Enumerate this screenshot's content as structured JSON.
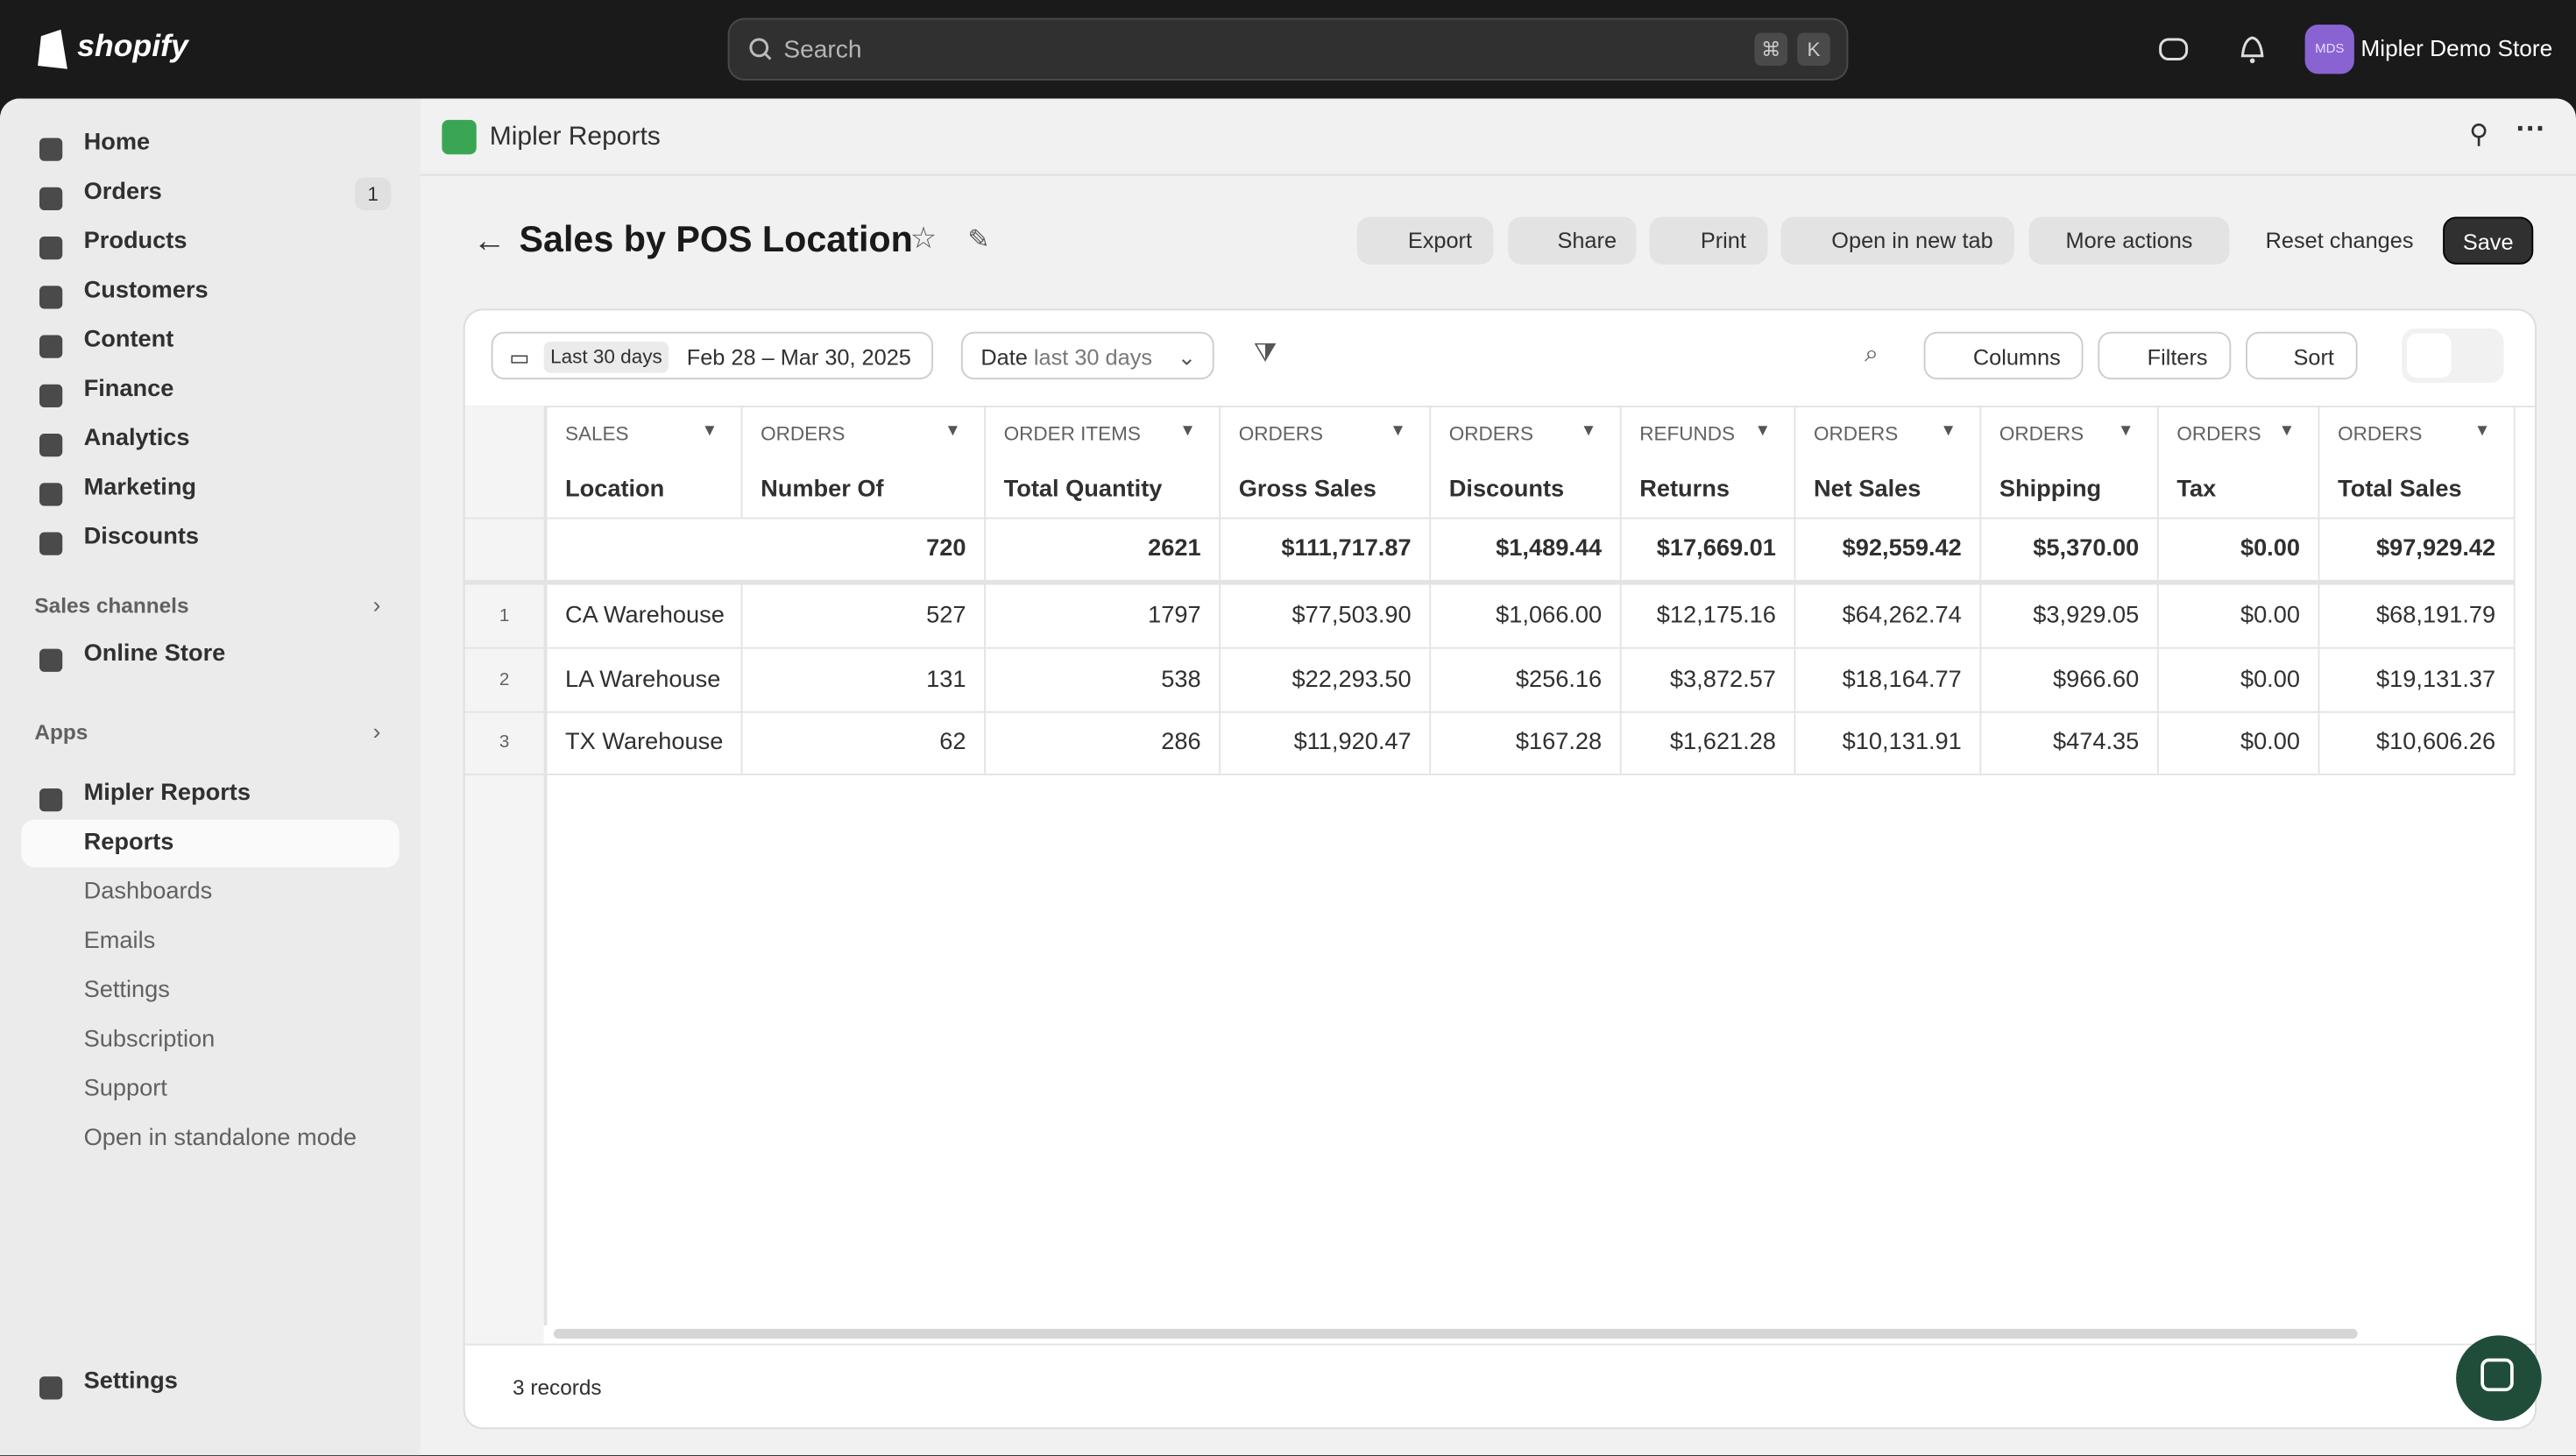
{
  "topbar": {
    "brand": "shopify",
    "search": "Search",
    "shortcut": [
      "⌘",
      "K"
    ],
    "store_initials": "MDS",
    "store": "Mipler Demo Store"
  },
  "sidebar": {
    "main": [
      {
        "label": "Home"
      },
      {
        "label": "Orders",
        "badge": "1"
      },
      {
        "label": "Products"
      },
      {
        "label": "Customers"
      },
      {
        "label": "Content"
      },
      {
        "label": "Finance"
      },
      {
        "label": "Analytics"
      },
      {
        "label": "Marketing"
      },
      {
        "label": "Discounts"
      }
    ],
    "sales_channels": {
      "title": "Sales channels",
      "items": [
        "Online Store"
      ]
    },
    "apps": {
      "title": "Apps",
      "app": "Mipler Reports",
      "sub": [
        "Reports",
        "Dashboards",
        "Emails",
        "Settings",
        "Subscription",
        "Support",
        "Open in standalone mode"
      ]
    },
    "settings": "Settings"
  },
  "app_header": "Mipler Reports",
  "page": {
    "title": "Sales by POS Location",
    "actions": [
      "Export",
      "Share",
      "Print",
      "Open in new tab",
      "More actions"
    ],
    "reset": "Reset changes",
    "save": "Save"
  },
  "toolbar": {
    "range_chip": "Last 30 days",
    "range": "Feb 28 – Mar 30, 2025",
    "date_filter_label": "Date",
    "date_filter_value": "last 30 days",
    "columns": "Columns",
    "filters": "Filters",
    "sort": "Sort"
  },
  "table": {
    "columns": [
      {
        "group": "SALES",
        "name": "Location"
      },
      {
        "group": "ORDERS",
        "name": "Number Of"
      },
      {
        "group": "ORDER ITEMS",
        "name": "Total Quantity"
      },
      {
        "group": "ORDERS",
        "name": "Gross Sales"
      },
      {
        "group": "ORDERS",
        "name": "Discounts"
      },
      {
        "group": "REFUNDS",
        "name": "Returns"
      },
      {
        "group": "ORDERS",
        "name": "Net Sales"
      },
      {
        "group": "ORDERS",
        "name": "Shipping"
      },
      {
        "group": "ORDERS",
        "name": "Tax"
      },
      {
        "group": "ORDERS",
        "name": "Total Sales"
      }
    ],
    "totals": [
      "720",
      "2621",
      "$111,717.87",
      "$1,489.44",
      "$17,669.01",
      "$92,559.42",
      "$5,370.00",
      "$0.00",
      "$97,929.42"
    ],
    "rows": [
      {
        "index": 1,
        "cells": [
          "CA Warehouse",
          "527",
          "1797",
          "$77,503.90",
          "$1,066.00",
          "$12,175.16",
          "$64,262.74",
          "$3,929.05",
          "$0.00",
          "$68,191.79"
        ]
      },
      {
        "index": 2,
        "cells": [
          "LA Warehouse",
          "131",
          "538",
          "$22,293.50",
          "$256.16",
          "$3,872.57",
          "$18,164.77",
          "$966.60",
          "$0.00",
          "$19,131.37"
        ]
      },
      {
        "index": 3,
        "cells": [
          "TX Warehouse",
          "62",
          "286",
          "$11,920.47",
          "$167.28",
          "$1,621.28",
          "$10,131.91",
          "$474.35",
          "$0.00",
          "$10,606.26"
        ]
      }
    ]
  },
  "footer": "3 records"
}
